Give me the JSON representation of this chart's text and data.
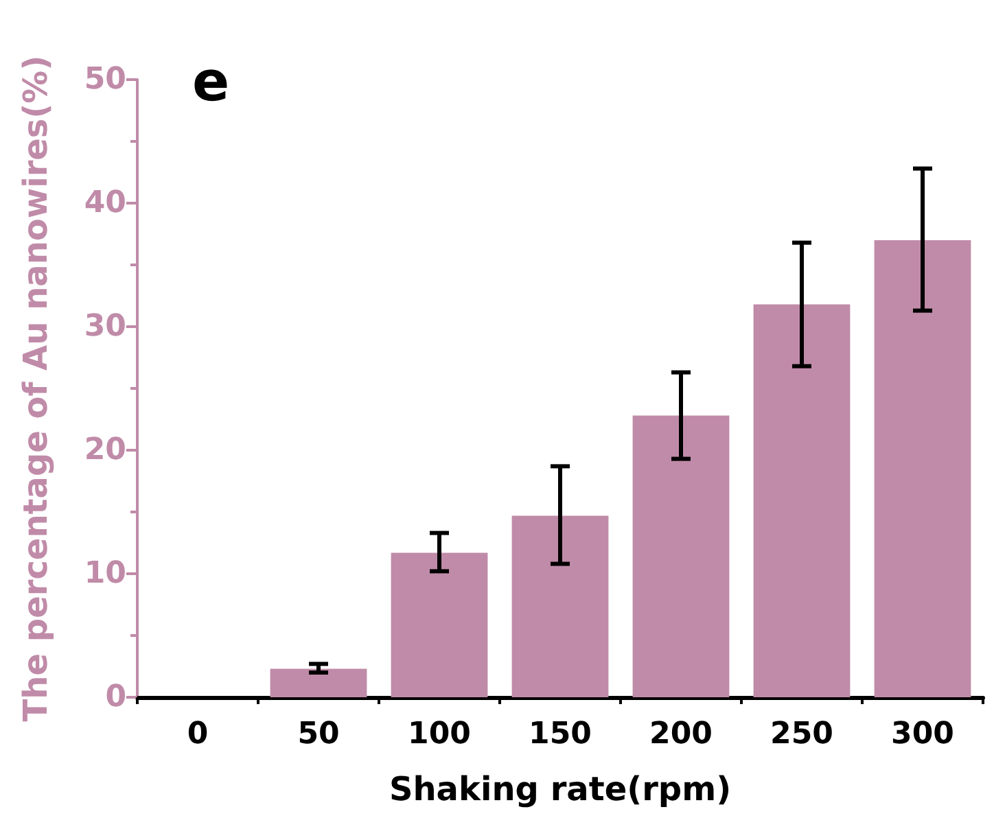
{
  "chart_data": {
    "type": "bar",
    "xlabel": "Shaking rate(rpm)",
    "ylabel": "The percentage of Au nanowires(%)",
    "annotations": [
      "e"
    ],
    "categories": [
      "0",
      "50",
      "100",
      "150",
      "200",
      "250",
      "300"
    ],
    "values": [
      0,
      2.3,
      11.7,
      14.7,
      22.8,
      31.8,
      37.0
    ],
    "errors": [
      null,
      [
        2.0,
        2.7
      ],
      [
        10.2,
        13.3
      ],
      [
        10.8,
        18.7
      ],
      [
        19.3,
        26.3
      ],
      [
        26.8,
        36.8
      ],
      [
        31.3,
        42.8
      ]
    ],
    "color": "#c08ba8",
    "ylim": [
      0,
      50
    ],
    "yticks": [
      0,
      10,
      20,
      30,
      40,
      50
    ],
    "grid": false
  }
}
